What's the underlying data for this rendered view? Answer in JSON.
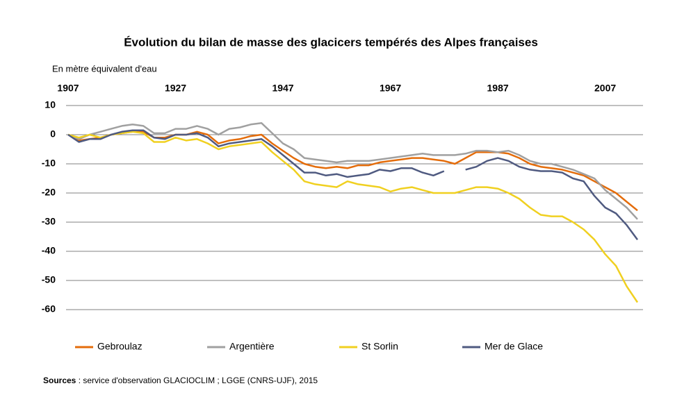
{
  "chart_data": {
    "type": "line",
    "title": "Évolution du bilan de masse des glacicers tempérés des Alpes françaises",
    "y_axis_label": "En mètre équivalent d'eau",
    "source_label": "Sources",
    "source_text": " : service d'observation GLACIOCLIM ; LGGE (CNRS-UJF), 2015",
    "x": [
      1907,
      1909,
      1911,
      1913,
      1915,
      1917,
      1919,
      1921,
      1923,
      1925,
      1927,
      1929,
      1931,
      1933,
      1935,
      1937,
      1939,
      1941,
      1943,
      1945,
      1947,
      1949,
      1951,
      1953,
      1955,
      1957,
      1959,
      1961,
      1963,
      1965,
      1967,
      1969,
      1971,
      1973,
      1975,
      1977,
      1979,
      1981,
      1983,
      1985,
      1987,
      1989,
      1991,
      1993,
      1995,
      1997,
      1999,
      2001,
      2003,
      2005,
      2007,
      2009,
      2011,
      2013
    ],
    "series": [
      {
        "name": "Gebroulaz",
        "color": "#e46c0a",
        "values": [
          0,
          -2,
          -1.5,
          -1,
          0,
          0.5,
          1,
          1,
          -1,
          -1,
          0,
          0,
          1,
          0,
          -3,
          -2,
          -1.5,
          -0.5,
          0,
          -3,
          -5.5,
          -8,
          -10,
          -11,
          -11.5,
          -11,
          -11.5,
          -10.5,
          -10.5,
          -9.5,
          -9,
          -8.5,
          -8,
          -8,
          -8.5,
          -9,
          -10,
          -8,
          -6,
          -6,
          -6,
          -6.5,
          -8,
          -10,
          -11,
          -11.5,
          -12,
          -13,
          -14,
          -16,
          -18,
          -20,
          -23,
          -26
        ]
      },
      {
        "name": "Argentière",
        "color": "#a0a0a0",
        "values": [
          0,
          -1.5,
          0,
          1,
          2,
          3,
          3.5,
          3,
          0.5,
          0.5,
          2,
          2,
          3,
          2,
          0,
          2,
          2.5,
          3.5,
          4,
          0.5,
          -3,
          -5,
          -8,
          -8.5,
          -9,
          -9.5,
          -9,
          -9,
          -9,
          -8.5,
          -8,
          -7.5,
          -7,
          -6.5,
          -7,
          -7,
          -7,
          -6.5,
          -5.5,
          -5.5,
          -6,
          -5.5,
          -7,
          -9,
          -10,
          -10,
          -11,
          -12,
          -13.5,
          -15,
          -19,
          -22,
          -25,
          -29
        ]
      },
      {
        "name": "St Sorlin",
        "color": "#f0d020",
        "values": [
          0,
          -1,
          0,
          -1,
          0,
          0.5,
          1,
          0.5,
          -2.5,
          -2.5,
          -1,
          -2,
          -1.5,
          -3,
          -5,
          -4,
          -3.5,
          -3,
          -2.5,
          -6,
          -9,
          -12,
          -16,
          -17,
          -17.5,
          -18,
          -16,
          -17,
          -17.5,
          -18,
          -19.5,
          -18.5,
          -18,
          -19,
          -20,
          -20,
          -20,
          -19,
          -18,
          -18,
          -18.5,
          -20,
          -22,
          -25,
          -27.5,
          -28,
          -28,
          -30,
          -32.5,
          -36,
          -41,
          -45,
          -52,
          -57.5
        ]
      },
      {
        "name": "Mer de Glace",
        "color": "#4f5a80",
        "values": [
          0,
          -2.5,
          -1.5,
          -1.5,
          0,
          1,
          1.5,
          1.5,
          -1,
          -1.5,
          0,
          0,
          0.5,
          -1,
          -4,
          -3,
          -2.5,
          -2,
          -1.5,
          -4,
          -7,
          -10,
          -13,
          -13,
          -14,
          -13.5,
          -14.5,
          -14,
          -13.5,
          -12,
          -12.5,
          -11.5,
          -11.5,
          -13,
          -14,
          -12.5,
          null,
          -12,
          -11,
          -9,
          -8,
          -9,
          -11,
          -12,
          -12.5,
          -12.5,
          -13,
          -15,
          -16,
          -21,
          -25,
          -27,
          -31,
          -36
        ]
      }
    ],
    "xlim": [
      1907,
      2014.3
    ],
    "xticks": [
      1907,
      1927,
      1947,
      1967,
      1987,
      2007
    ],
    "ylim": [
      -65,
      10
    ],
    "yticks": [
      10,
      0,
      -10,
      -20,
      -30,
      -40,
      -50,
      -60
    ],
    "grid": true
  }
}
